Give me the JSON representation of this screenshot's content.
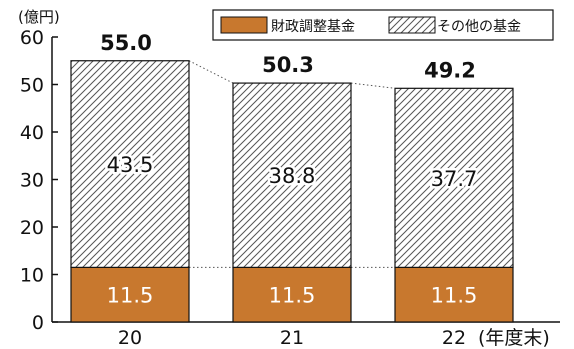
{
  "chart_data": {
    "type": "bar",
    "stacked": true,
    "unit_label": "(億円)",
    "x_axis_suffix": "(年度末)",
    "categories": [
      "20",
      "21",
      "22"
    ],
    "series": [
      {
        "name": "財政調整基金",
        "values": [
          11.5,
          11.5,
          11.5
        ],
        "color": "#c8782e",
        "pattern": "solid"
      },
      {
        "name": "その他の基金",
        "values": [
          43.5,
          38.8,
          37.7
        ],
        "color": "#ffffff",
        "pattern": "hatch"
      }
    ],
    "totals": [
      "55.0",
      "50.3",
      "49.2"
    ],
    "segment_labels": [
      [
        "11.5",
        "11.5",
        "11.5"
      ],
      [
        "43.5",
        "38.8",
        "37.7"
      ]
    ],
    "ylim": [
      0,
      60
    ],
    "yticks": [
      0,
      10,
      20,
      30,
      40,
      50,
      60
    ],
    "legend_position": "top-right",
    "connector_lines": "dotted",
    "grid": false
  }
}
